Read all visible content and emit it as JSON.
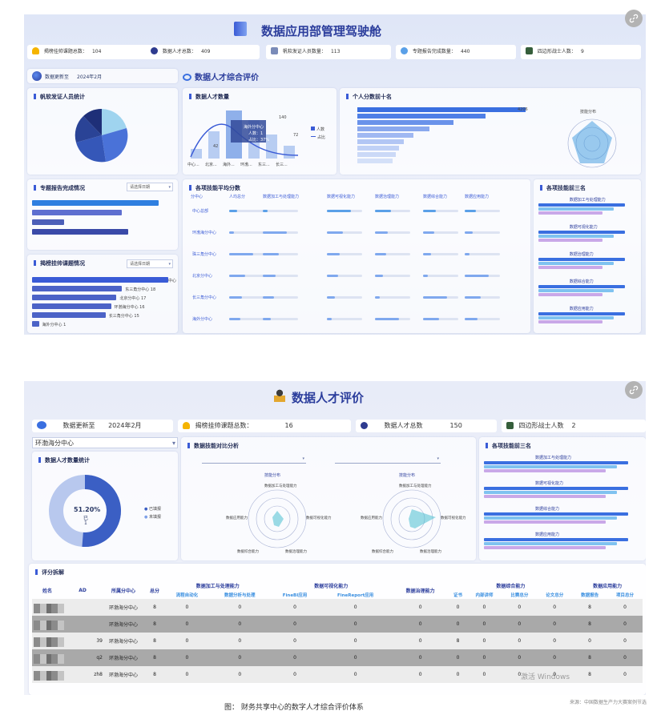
{
  "screenshot1": {
    "title": "数据应用部管理驾驶舱",
    "stats": [
      {
        "label": "揭榜挂帅课题总数：",
        "value": "104",
        "color": "#f5b400"
      },
      {
        "label": "数据人才总数：",
        "value": "409",
        "color": "#2e3b8f"
      },
      {
        "label": "帆软发证人员数量：",
        "value": "113",
        "color": "#7a8bb8"
      },
      {
        "label": "专题报告完成数量：",
        "value": "440",
        "color": "#5aa0e8"
      },
      {
        "label": "四边形战士人数：",
        "value": "9",
        "color": "#355e3b"
      }
    ],
    "update": {
      "label": "数据更新至",
      "date": "2024年2月"
    },
    "section_title": "数据人才综合评价",
    "fanruan": {
      "title": "帆软发证人员统计"
    },
    "report": {
      "title": "专题报告完成情况",
      "dropdown": "请选择日期"
    },
    "jiebang": {
      "title": "揭榜挂帅课题情况",
      "dropdown": "请选择日期",
      "bars": [
        {
          "label": "中心",
          "value": 1.0
        },
        {
          "label": "东三角分中心 18",
          "value": 0.66
        },
        {
          "label": "北京分中心 17",
          "value": 0.62
        },
        {
          "label": "环渤海分中心 16",
          "value": 0.58
        },
        {
          "label": "长三角分中心 15",
          "value": 0.54
        },
        {
          "label": "海外分中心 1",
          "value": 0.05
        }
      ]
    },
    "talent_count": {
      "title": "数据人才数量",
      "legend": [
        "人数",
        "占比"
      ],
      "tooltip": [
        "海外分中心",
        "人数：1",
        "占比：37%"
      ],
      "numbers": [
        "140",
        "72",
        "42"
      ],
      "categories": [
        "中心...",
        "北京...",
        "海外...",
        "环渤...",
        "东三...",
        "长三..."
      ]
    },
    "top_ten": {
      "title": "个人分数前十名",
      "value_label": "4206",
      "radar_label": "技能分布"
    },
    "avg_score": {
      "title": "各项技能平均分数",
      "columns": [
        "分中心",
        "人均总分",
        "数据加工与处理能力",
        "数据可视化能力",
        "数据治理能力",
        "数据综合能力",
        "数据应用能力"
      ],
      "rows": [
        "中心总部",
        "环渤海分中心",
        "珠三角分中心",
        "北京分中心",
        "长三角分中心",
        "海外分中心"
      ]
    },
    "top_three": {
      "title": "各项技能前三名",
      "skills": [
        "数据加工与处理能力",
        "数据可视化能力",
        "数据治理能力",
        "数据综合能力",
        "数据应用能力"
      ]
    }
  },
  "screenshot2": {
    "title": "数据人才评价",
    "update": {
      "label": "数据更新至",
      "date": "2024年2月"
    },
    "stats": [
      {
        "label": "揭榜挂帅课题总数：",
        "value": "16",
        "color": "#f5b400"
      },
      {
        "label": "数据人才总数",
        "value": "150",
        "color": "#2e3b8f"
      },
      {
        "label": "四边形战士人数",
        "value": "2",
        "color": "#355e3b"
      }
    ],
    "center_select": "环渤海分中心",
    "talent_stats": {
      "title": "数据人才数量统计",
      "percent": "51.20%",
      "sub1": "已",
      "sub2": "1",
      "legend": [
        "已填报",
        "未填报"
      ],
      "filled_fraction": 0.512
    },
    "compare": {
      "title": "数据技能对比分析",
      "radar_title": "技能分布",
      "axes": [
        "数据加工与处理能力",
        "数据可视化能力",
        "数据治理能力",
        "数据综合能力",
        "数据应用能力"
      ]
    },
    "top_three": {
      "title": "各项技能前三名",
      "skills": [
        "数据加工与处理能力",
        "数据可视化能力",
        "数据综合能力",
        "数据应用能力"
      ]
    },
    "score_table": {
      "title": "评分拆解",
      "group_headers": [
        "数据加工与处理能力",
        "数据可视化能力",
        "数据治理能力",
        "数据综合能力",
        "数据应用能力"
      ],
      "base_headers": [
        "姓名",
        "AD",
        "所属分中心",
        "总分"
      ],
      "sub_headers": [
        "流程自动化",
        "数据分析与处理",
        "FineBI应用",
        "FineReport应用",
        "证书",
        "内部讲师",
        "比赛总分",
        "论文总分",
        "数据报告",
        "项目总分"
      ],
      "rows": [
        {
          "ad": "",
          "center": "环渤海分中心",
          "total": "8",
          "cells": [
            "0",
            "0",
            "0",
            "0",
            "0",
            "0",
            "0",
            "0",
            "0",
            "8",
            "0"
          ]
        },
        {
          "ad": "",
          "center": "环渤海分中心",
          "total": "8",
          "cells": [
            "0",
            "0",
            "0",
            "0",
            "0",
            "0",
            "0",
            "0",
            "0",
            "8",
            "0"
          ]
        },
        {
          "ad": "39",
          "center": "环渤海分中心",
          "total": "8",
          "cells": [
            "0",
            "0",
            "0",
            "0",
            "0",
            "8",
            "0",
            "0",
            "0",
            "0",
            "0"
          ]
        },
        {
          "ad": "q2",
          "center": "环渤海分中心",
          "total": "8",
          "cells": [
            "0",
            "0",
            "0",
            "0",
            "0",
            "0",
            "0",
            "0",
            "0",
            "8",
            "0"
          ]
        },
        {
          "ad": "zh8",
          "center": "环渤海分中心",
          "total": "8",
          "cells": [
            "0",
            "0",
            "0",
            "0",
            "0",
            "0",
            "0",
            "0",
            "0",
            "8",
            "0"
          ]
        }
      ]
    },
    "watermark": "激活 Windows"
  },
  "caption": "图： 财务共享中心的数字人才综合评价体系",
  "source": "来源：中国数据生产力大赛案例节选"
}
